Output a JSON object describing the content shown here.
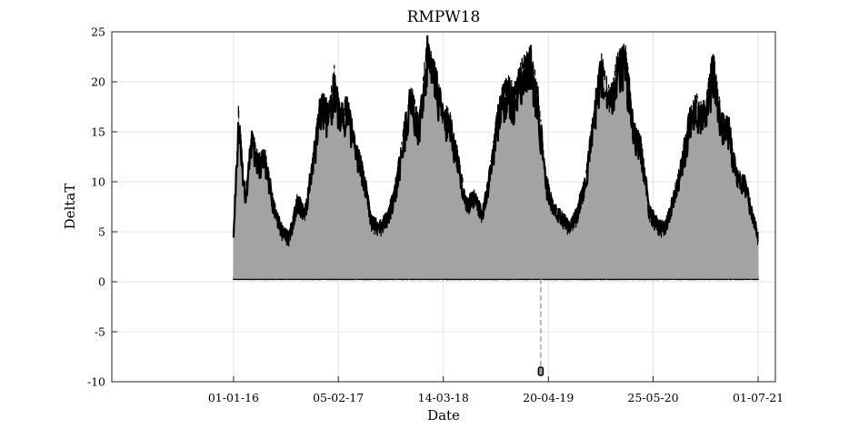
{
  "chart_data": {
    "type": "line",
    "title": "RMPW18",
    "xlabel": "Date",
    "ylabel": "DeltaT",
    "ylim": [
      -10,
      25
    ],
    "xlim": [
      "2014-09-22",
      "2021-09-05"
    ],
    "grid": true,
    "x_ticks": [
      "01-01-16",
      "05-02-17",
      "14-03-18",
      "20-04-19",
      "25-05-20",
      "01-07-21"
    ],
    "y_ticks": [
      25,
      20,
      15,
      10,
      5,
      0,
      -5,
      -10
    ],
    "series": [
      {
        "style": "black markers outlining a light-gray dense daily signal",
        "marker_color": "#000000",
        "fill_color": "#a3a3a3",
        "x_range": [
          "2016-01-01",
          "2021-07-01"
        ],
        "min_envelope_value": 0.3,
        "upper_envelope": [
          [
            "2016-01-01",
            5.0
          ],
          [
            "2016-01-20",
            17.8
          ],
          [
            "2016-02-15",
            9.0
          ],
          [
            "2016-03-10",
            15.4
          ],
          [
            "2016-04-05",
            13.0
          ],
          [
            "2016-05-01",
            13.6
          ],
          [
            "2016-06-01",
            8.5
          ],
          [
            "2016-07-01",
            5.9
          ],
          [
            "2016-08-01",
            5.0
          ],
          [
            "2016-09-01",
            8.9
          ],
          [
            "2016-10-01",
            7.5
          ],
          [
            "2016-11-01",
            13.3
          ],
          [
            "2016-12-01",
            19.4
          ],
          [
            "2017-01-01",
            18.0
          ],
          [
            "2017-01-20",
            22.0
          ],
          [
            "2017-02-10",
            18.0
          ],
          [
            "2017-03-10",
            18.7
          ],
          [
            "2017-04-10",
            14.9
          ],
          [
            "2017-05-10",
            12.0
          ],
          [
            "2017-06-10",
            6.8
          ],
          [
            "2017-07-10",
            6.1
          ],
          [
            "2017-08-10",
            7.0
          ],
          [
            "2017-09-10",
            9.7
          ],
          [
            "2017-10-10",
            15.2
          ],
          [
            "2017-11-10",
            20.0
          ],
          [
            "2017-12-10",
            16.6
          ],
          [
            "2018-01-10",
            24.8
          ],
          [
            "2018-02-10",
            22.0
          ],
          [
            "2018-03-10",
            18.5
          ],
          [
            "2018-04-10",
            17.0
          ],
          [
            "2018-05-10",
            12.9
          ],
          [
            "2018-06-10",
            8.4
          ],
          [
            "2018-07-10",
            9.5
          ],
          [
            "2018-08-10",
            7.2
          ],
          [
            "2018-09-10",
            11.8
          ],
          [
            "2018-10-10",
            18.2
          ],
          [
            "2018-11-10",
            21.0
          ],
          [
            "2018-12-10",
            19.9
          ],
          [
            "2019-01-10",
            22.5
          ],
          [
            "2019-02-10",
            24.0
          ],
          [
            "2019-03-10",
            19.8
          ],
          [
            "2019-04-10",
            11.0
          ],
          [
            "2019-05-10",
            8.0
          ],
          [
            "2019-06-10",
            7.2
          ],
          [
            "2019-07-10",
            6.0
          ],
          [
            "2019-08-10",
            7.8
          ],
          [
            "2019-09-10",
            11.0
          ],
          [
            "2019-10-10",
            17.6
          ],
          [
            "2019-11-10",
            23.2
          ],
          [
            "2019-12-10",
            19.4
          ],
          [
            "2020-01-10",
            23.1
          ],
          [
            "2020-02-10",
            24.1
          ],
          [
            "2020-03-10",
            16.2
          ],
          [
            "2020-04-10",
            14.6
          ],
          [
            "2020-05-10",
            7.8
          ],
          [
            "2020-06-10",
            6.4
          ],
          [
            "2020-07-10",
            6.1
          ],
          [
            "2020-08-10",
            9.0
          ],
          [
            "2020-09-10",
            12.4
          ],
          [
            "2020-10-10",
            17.4
          ],
          [
            "2020-11-10",
            19.0
          ],
          [
            "2020-12-10",
            18.0
          ],
          [
            "2021-01-10",
            23.4
          ],
          [
            "2021-02-10",
            17.0
          ],
          [
            "2021-03-10",
            16.7
          ],
          [
            "2021-04-10",
            11.5
          ],
          [
            "2021-05-10",
            10.8
          ],
          [
            "2021-06-10",
            7.3
          ],
          [
            "2021-07-01",
            5.0
          ]
        ],
        "outlier": {
          "x": "2019-03-22",
          "y": -9.0
        }
      }
    ]
  }
}
